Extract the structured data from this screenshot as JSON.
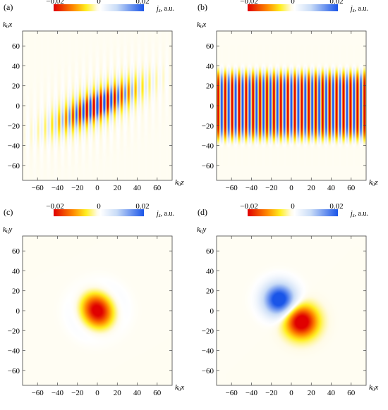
{
  "colorscale": {
    "stops": [
      "#e00000",
      "#ff8c00",
      "#ffee20",
      "#fffbe6",
      "#ffffff",
      "#c9dcf7",
      "#1a55e8"
    ],
    "min": -0.02,
    "max": 0.02,
    "tick_labels": [
      "−0.02",
      "0",
      "0.02"
    ],
    "label": "j",
    "label_sub": "z",
    "label_suffix": ", a.u."
  },
  "chart_data": [
    {
      "type": "heatmap",
      "panel_label": "(a)",
      "xlabel": "k",
      "xlabel_sub": "0",
      "xlabel_var": "z",
      "ylabel": "k",
      "ylabel_sub": "0",
      "ylabel_var": "x",
      "xlim": [
        -75,
        75
      ],
      "ylim": [
        -75,
        75
      ],
      "xticks": [
        "−60",
        "−40",
        "−20",
        "0",
        "20",
        "40",
        "60"
      ],
      "yticks": [
        "60",
        "40",
        "20",
        "0",
        "−20",
        "−40",
        "−60"
      ],
      "field": "tilted gaussian beam with fine oscillating fringes along k0z, tilt about -25 degrees, amplitude 0.02"
    },
    {
      "type": "heatmap",
      "panel_label": "(b)",
      "xlabel": "k",
      "xlabel_sub": "0",
      "xlabel_var": "z",
      "ylabel": "k",
      "ylabel_sub": "0",
      "ylabel_var": "x",
      "xlim": [
        -75,
        75
      ],
      "ylim": [
        -75,
        75
      ],
      "xticks": [
        "−60",
        "−40",
        "−20",
        "0",
        "20",
        "40",
        "60"
      ],
      "yticks": [
        "60",
        "40",
        "20",
        "0",
        "−20",
        "−40",
        "−60"
      ],
      "field": "horizontal band |k0x| < 35 with fine oscillating fringes along k0z, amplitude 0.02"
    },
    {
      "type": "heatmap",
      "panel_label": "(c)",
      "xlabel": "k",
      "xlabel_sub": "0",
      "xlabel_var": "x",
      "ylabel": "k",
      "ylabel_sub": "0",
      "ylabel_var": "y",
      "xlim": [
        -75,
        75
      ],
      "ylim": [
        -75,
        75
      ],
      "xticks": [
        "−60",
        "−40",
        "−20",
        "0",
        "20",
        "40",
        "60"
      ],
      "yticks": [
        "60",
        "40",
        "20",
        "0",
        "−20",
        "−40",
        "−60"
      ],
      "field": "single negative lobe centred at (0,0) with faint positive ring, peak -0.02"
    },
    {
      "type": "heatmap",
      "panel_label": "(d)",
      "xlabel": "k",
      "xlabel_sub": "0",
      "xlabel_var": "x",
      "ylabel": "k",
      "ylabel_sub": "0",
      "ylabel_var": "y",
      "xlim": [
        -75,
        75
      ],
      "ylim": [
        -75,
        75
      ],
      "xticks": [
        "−60",
        "−40",
        "−20",
        "0",
        "20",
        "40",
        "60"
      ],
      "yticks": [
        "60",
        "40",
        "20",
        "0",
        "−20",
        "−40",
        "−60"
      ],
      "field": "dipole: positive lobe near (-10,10), negative lobe near (10,-10), peak 0.02"
    }
  ]
}
